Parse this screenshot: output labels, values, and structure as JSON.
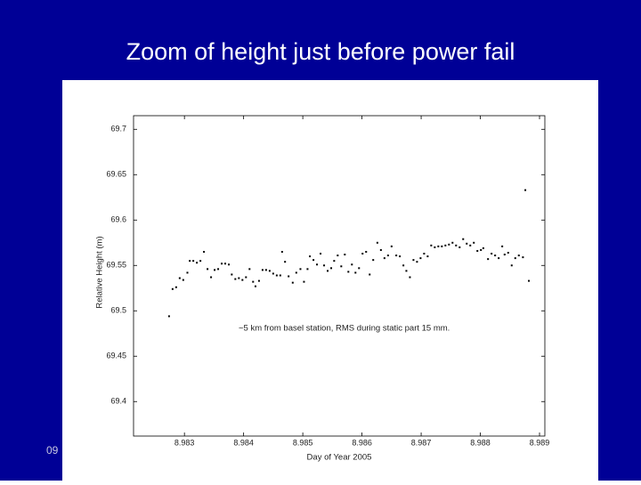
{
  "footer": "09",
  "chart_data": {
    "type": "scatter",
    "title": "Zoom of height just before power fail",
    "xlabel": "Day of Year 2005",
    "ylabel": "Relative Height (m)",
    "annotation": "~5 km from basel station, RMS during static part 15 mm.",
    "xlim": [
      8.98214,
      8.98909
    ],
    "ylim": [
      69.362,
      69.715
    ],
    "xticks": [
      8.983,
      8.984,
      8.985,
      8.986,
      8.987,
      8.988,
      8.989
    ],
    "yticks": [
      69.4,
      69.45,
      69.5,
      69.55,
      69.6,
      69.65,
      69.7
    ],
    "grid": false,
    "color": "#000000",
    "x": [
      8.98274,
      8.9828,
      8.98286,
      8.98292,
      8.98298,
      8.98305,
      8.98309,
      8.98315,
      8.98321,
      8.98327,
      8.98333,
      8.98339,
      8.98345,
      8.98351,
      8.98357,
      8.98363,
      8.98369,
      8.98375,
      8.9838,
      8.98386,
      8.98392,
      8.98398,
      8.98404,
      8.9841,
      8.98416,
      8.9842,
      8.98426,
      8.98432,
      8.98438,
      8.98444,
      8.9845,
      8.98456,
      8.98462,
      8.98465,
      8.9847,
      8.98476,
      8.98483,
      8.98489,
      8.98496,
      8.98502,
      8.98508,
      8.98512,
      8.98518,
      8.98524,
      8.9853,
      8.98536,
      8.98542,
      8.98548,
      8.98553,
      8.98559,
      8.98565,
      8.98571,
      8.98577,
      8.98583,
      8.98589,
      8.98595,
      8.98601,
      8.98607,
      8.98613,
      8.98619,
      8.98626,
      8.98632,
      8.98638,
      8.98644,
      8.9865,
      8.98658,
      8.98664,
      8.9867,
      8.98675,
      8.98681,
      8.98687,
      8.98693,
      8.98699,
      8.98705,
      8.98711,
      8.98717,
      8.98723,
      8.98729,
      8.98735,
      8.98741,
      8.98747,
      8.98753,
      8.98759,
      8.98765,
      8.98771,
      8.98777,
      8.98783,
      8.98789,
      8.98795,
      8.98801,
      8.98805,
      8.98813,
      8.98819,
      8.98825,
      8.98831,
      8.98837,
      8.98841,
      8.98847,
      8.98853,
      8.98859,
      8.98865,
      8.98872,
      8.98876,
      8.98882
    ],
    "values": [
      69.494,
      69.524,
      69.526,
      69.536,
      69.534,
      69.542,
      69.555,
      69.555,
      69.553,
      69.555,
      69.565,
      69.546,
      69.537,
      69.545,
      69.546,
      69.552,
      69.552,
      69.551,
      69.54,
      69.535,
      69.536,
      69.534,
      69.537,
      69.546,
      69.532,
      69.527,
      69.533,
      69.545,
      69.545,
      69.544,
      69.541,
      69.539,
      69.539,
      69.565,
      69.554,
      69.538,
      69.531,
      69.542,
      69.546,
      69.532,
      69.546,
      69.56,
      69.556,
      69.551,
      69.563,
      69.55,
      69.544,
      69.547,
      69.555,
      69.561,
      69.549,
      69.562,
      69.543,
      69.551,
      69.542,
      69.547,
      69.563,
      69.565,
      69.54,
      69.556,
      69.575,
      69.567,
      69.558,
      69.561,
      69.571,
      69.561,
      69.56,
      69.55,
      69.544,
      69.537,
      69.556,
      69.554,
      69.558,
      69.563,
      69.56,
      69.572,
      69.57,
      69.571,
      69.571,
      69.572,
      69.573,
      69.575,
      69.572,
      69.57,
      69.579,
      69.574,
      69.572,
      69.575,
      69.566,
      69.567,
      69.569,
      69.557,
      69.563,
      69.561,
      69.558,
      69.571,
      69.562,
      69.564,
      69.55,
      69.558,
      69.561,
      69.559,
      69.633,
      69.533
    ]
  }
}
